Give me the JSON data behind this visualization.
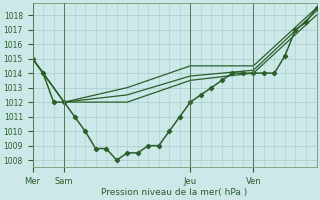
{
  "background_color": "#cce8e8",
  "grid_color": "#aacccc",
  "line_color": "#2a5f2a",
  "xlabel": "Pression niveau de la mer( hPa )",
  "ylim": [
    1007.5,
    1018.8
  ],
  "yticks": [
    1008,
    1009,
    1010,
    1011,
    1012,
    1013,
    1014,
    1015,
    1016,
    1017,
    1018
  ],
  "day_labels": [
    "Mer",
    "Sam",
    "Jeu",
    "Ven"
  ],
  "day_positions": [
    0,
    3,
    15,
    21
  ],
  "xlim": [
    0,
    27
  ],
  "series_main": {
    "x": [
      0,
      1,
      2,
      3,
      4,
      5,
      6,
      7,
      8,
      9,
      10,
      11,
      12,
      13,
      14,
      15,
      16,
      17,
      18,
      19,
      20,
      21,
      22,
      23,
      24,
      25,
      26,
      27
    ],
    "y": [
      1015,
      1014,
      1012,
      1012,
      1011,
      1010,
      1008.8,
      1008.8,
      1008.0,
      1008.5,
      1008.5,
      1009.0,
      1009.0,
      1010.0,
      1011.0,
      1012.0,
      1012.5,
      1013.0,
      1013.5,
      1014.0,
      1014.0,
      1014.0,
      1014.0,
      1014.0,
      1015.2,
      1017.0,
      1017.5,
      1018.5
    ],
    "marker": "D",
    "markersize": 2.2,
    "linewidth": 1.1
  },
  "series_smooth": [
    {
      "x": [
        0,
        3,
        9,
        15,
        21,
        27
      ],
      "y": [
        1015,
        1012,
        1012,
        1013.5,
        1014.0,
        1018.0
      ]
    },
    {
      "x": [
        0,
        3,
        9,
        15,
        21,
        27
      ],
      "y": [
        1015,
        1012,
        1012.5,
        1013.8,
        1014.2,
        1018.3
      ]
    },
    {
      "x": [
        0,
        3,
        9,
        15,
        21,
        27
      ],
      "y": [
        1015,
        1012,
        1013.0,
        1014.5,
        1014.5,
        1018.5
      ]
    }
  ],
  "smooth_linewidth": 0.9
}
